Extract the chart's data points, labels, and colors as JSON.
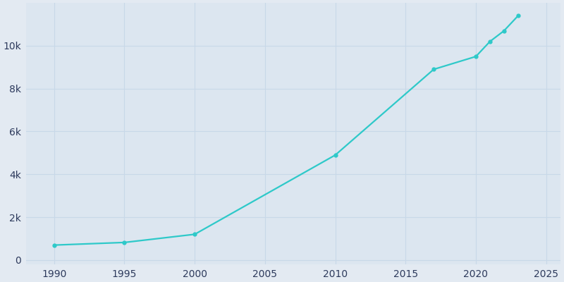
{
  "years": [
    1990,
    1995,
    2000,
    2010,
    2017,
    2020,
    2021,
    2022,
    2023
  ],
  "population": [
    697,
    820,
    1200,
    4900,
    8900,
    9500,
    10200,
    10700,
    11400
  ],
  "line_color": "#2ec9c9",
  "marker_style": "o",
  "marker_size": 3.5,
  "line_width": 1.6,
  "bg_color": "#e3eaf2",
  "plot_bg_color": "#dce6f0",
  "grid_color": "#c8d8e8",
  "tick_label_color": "#2d3a5c",
  "xlim": [
    1988,
    2026
  ],
  "ylim": [
    -200,
    12000
  ],
  "yticks": [
    0,
    2000,
    4000,
    6000,
    8000,
    10000
  ],
  "ytick_labels": [
    "0",
    "2k",
    "4k",
    "6k",
    "8k",
    "10k"
  ],
  "xticks": [
    1990,
    1995,
    2000,
    2005,
    2010,
    2015,
    2020,
    2025
  ],
  "tick_fontsize": 10,
  "figsize": [
    8.0,
    4.0
  ],
  "dpi": 100
}
